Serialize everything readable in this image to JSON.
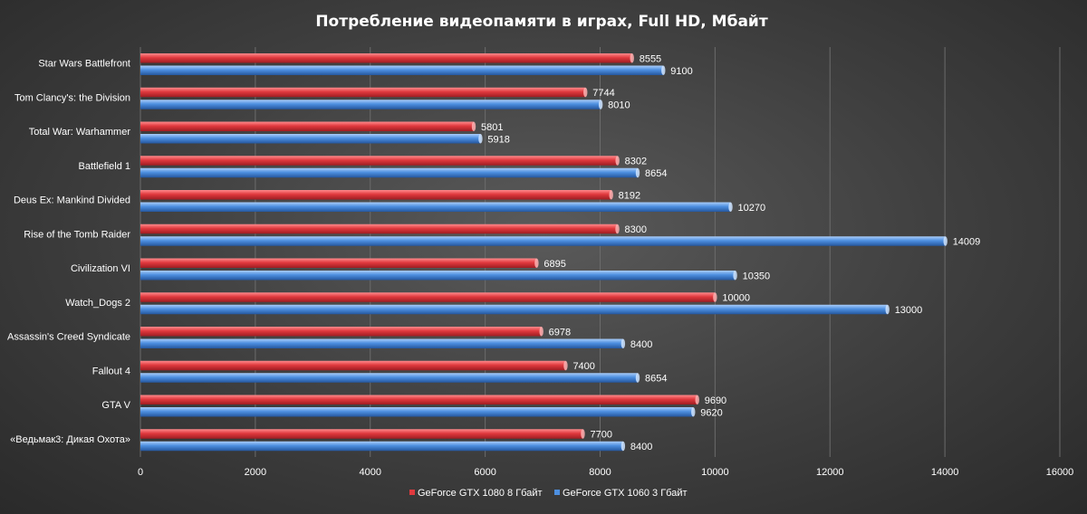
{
  "chart_data": {
    "type": "bar",
    "orientation": "horizontal",
    "title": "Потребление  видеопамяти  в играх,  Full HD,  Мбайт",
    "xlabel": "",
    "ylabel": "",
    "xlim": [
      0,
      16000
    ],
    "x_ticks": [
      0,
      2000,
      4000,
      6000,
      8000,
      10000,
      12000,
      14000,
      16000
    ],
    "grid": true,
    "legend_position": "bottom",
    "categories": [
      "Star Wars Battlefront",
      "Tom Clancy's: the Division",
      "Total War: Warhammer",
      "Battlefield 1",
      "Deus Ex: Mankind Divided",
      "Rise of the Tomb Raider",
      "Civilization VI",
      "Watch_Dogs 2",
      "Assassin's Creed Syndicate",
      "Fallout 4",
      "GTA V",
      "«Ведьмак3: Дикая Охота»"
    ],
    "series": [
      {
        "name": "GeForce GTX 1080 8 Гбайт",
        "color": "#e0393e",
        "values": [
          8555,
          7744,
          5801,
          8302,
          8192,
          8300,
          6895,
          10000,
          6978,
          7400,
          9690,
          7700
        ]
      },
      {
        "name": "GeForce GTX 1060 3 Гбайт",
        "color": "#4d8fe0",
        "values": [
          9100,
          8010,
          5918,
          8654,
          10270,
          14009,
          10350,
          13000,
          8400,
          8654,
          9620,
          8400
        ]
      }
    ]
  }
}
